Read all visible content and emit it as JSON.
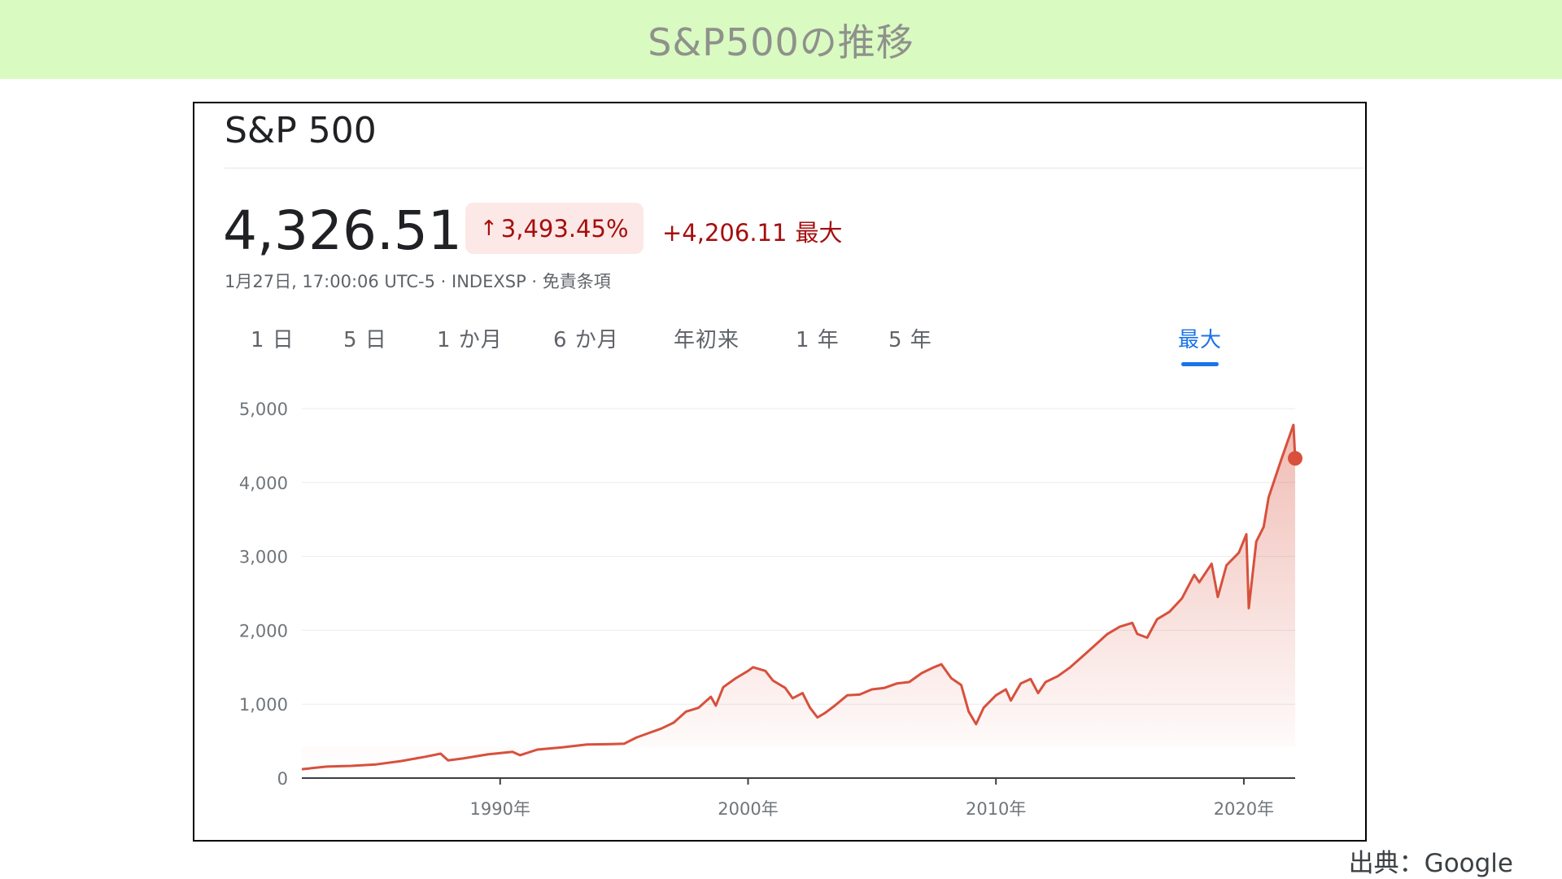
{
  "banner": {
    "title": "S&P500の推移"
  },
  "widget": {
    "name": "S&P 500",
    "price": "4,326.51",
    "change_pct": "3,493.45%",
    "change_abs": "+4,206.11",
    "change_range": "最大",
    "meta": "1月27日, 17:00:06 UTC-5 · INDEXSP · 免責条項",
    "tabs": [
      "1 日",
      "5 日",
      "1 か月",
      "6 か月",
      "年初来",
      "1 年",
      "5 年",
      "最大"
    ],
    "active_tab": "最大"
  },
  "colors": {
    "line": "#d8503c",
    "accent": "#1a73e8",
    "pill_bg": "#fce8e6",
    "pill_text": "#a50e0e",
    "banner": "#d9fac1"
  },
  "icons": {
    "change_arrow": "arrow-up-icon"
  },
  "chart_data": {
    "type": "area",
    "x": [
      1982.0,
      1983.0,
      1984.0,
      1985.0,
      1986.0,
      1987.0,
      1987.6,
      1987.9,
      1988.5,
      1989.5,
      1990.5,
      1990.8,
      1991.5,
      1992.5,
      1993.5,
      1994.5,
      1995.0,
      1995.5,
      1996.0,
      1996.5,
      1997.0,
      1997.5,
      1998.0,
      1998.5,
      1998.7,
      1999.0,
      1999.5,
      2000.0,
      2000.2,
      2000.7,
      2001.0,
      2001.5,
      2001.8,
      2002.2,
      2002.5,
      2002.8,
      2003.1,
      2003.5,
      2004.0,
      2004.5,
      2005.0,
      2005.5,
      2006.0,
      2006.5,
      2007.0,
      2007.5,
      2007.8,
      2008.2,
      2008.6,
      2008.9,
      2009.2,
      2009.5,
      2010.0,
      2010.4,
      2010.6,
      2011.0,
      2011.4,
      2011.7,
      2012.0,
      2012.5,
      2013.0,
      2013.5,
      2014.0,
      2014.5,
      2015.0,
      2015.5,
      2015.7,
      2016.1,
      2016.5,
      2017.0,
      2017.5,
      2018.0,
      2018.2,
      2018.7,
      2018.95,
      2019.3,
      2019.8,
      2020.1,
      2020.2,
      2020.5,
      2020.8,
      2021.0,
      2021.5,
      2022.0,
      2022.07
    ],
    "y": [
      120,
      155,
      165,
      185,
      230,
      290,
      330,
      240,
      265,
      320,
      355,
      310,
      385,
      415,
      455,
      460,
      465,
      550,
      610,
      670,
      750,
      900,
      950,
      1100,
      980,
      1230,
      1350,
      1450,
      1500,
      1450,
      1320,
      1220,
      1080,
      1150,
      950,
      820,
      880,
      980,
      1120,
      1130,
      1200,
      1220,
      1280,
      1300,
      1420,
      1500,
      1540,
      1350,
      1260,
      900,
      730,
      950,
      1120,
      1200,
      1050,
      1280,
      1340,
      1150,
      1300,
      1380,
      1500,
      1650,
      1800,
      1950,
      2050,
      2100,
      1950,
      1900,
      2150,
      2250,
      2430,
      2750,
      2650,
      2900,
      2450,
      2880,
      3050,
      3300,
      2300,
      3200,
      3400,
      3800,
      4300,
      4780,
      4326.51
    ],
    "ylim": [
      0,
      5000
    ],
    "yticks": [
      "5,000",
      "4,000",
      "3,000",
      "2,000",
      "1,000",
      "0"
    ],
    "xticks": [
      "1990年",
      "2000年",
      "2010年",
      "2020年"
    ],
    "grid": true
  },
  "footer": {
    "source": "出典：Google"
  }
}
